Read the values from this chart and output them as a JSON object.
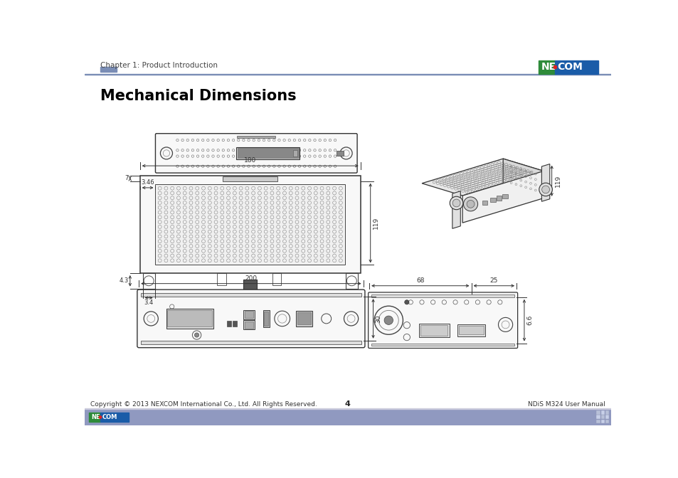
{
  "title": "Mechanical Dimensions",
  "header_text": "Chapter 1: Product Introduction",
  "footer_left": "Copyright © 2013 NEXCOM International Co., Ltd. All Rights Reserved.",
  "footer_center": "4",
  "footer_right": "NDiS M324 User Manual",
  "bg_color": "#ffffff",
  "header_line_color": "#7a8db5",
  "header_accent_color": "#7a8db5",
  "footer_bar_color": "#9099c0",
  "nexcom_logo_bg": "#1a5ca8",
  "nexcom_logo_green": "#2e8b3a",
  "nexcom_logo_red": "#dd2222",
  "nexcom_logo_text": "#ffffff",
  "dc": "#333333"
}
